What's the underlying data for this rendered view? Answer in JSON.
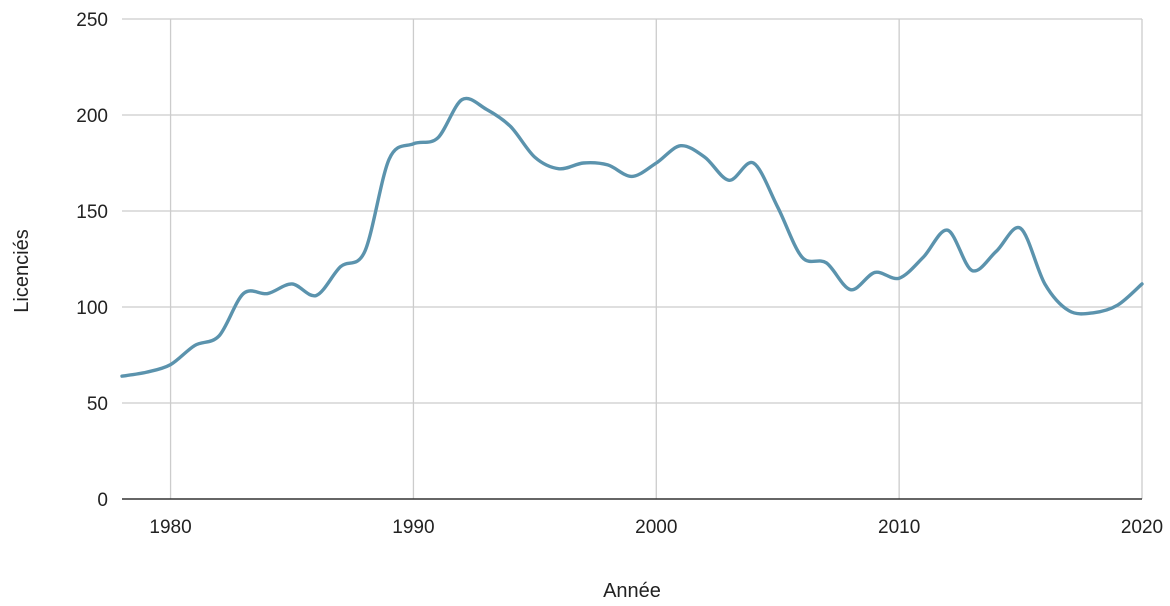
{
  "chart_data": {
    "type": "line",
    "title": "",
    "xlabel": "Année",
    "ylabel": "Licenciés",
    "xlim": [
      1978,
      2020
    ],
    "ylim": [
      0,
      250
    ],
    "x_ticks": [
      "1980",
      "1990",
      "2000",
      "2010",
      "2020"
    ],
    "y_ticks": [
      "0",
      "50",
      "100",
      "150",
      "200",
      "250"
    ],
    "grid": true,
    "legend": "none",
    "colors": {
      "line": "#5b93ad",
      "grid": "#cccccc",
      "axis": "#333333"
    },
    "series": [
      {
        "x": [
          1978,
          1979,
          1980,
          1981,
          1982,
          1983,
          1984,
          1985,
          1986,
          1987,
          1988,
          1989,
          1990,
          1991,
          1992,
          1993,
          1994,
          1995,
          1996,
          1997,
          1998,
          1999,
          2000,
          2001,
          2002,
          2003,
          2004,
          2005,
          2006,
          2007,
          2008,
          2009,
          2010,
          2011,
          2012,
          2013,
          2014,
          2015,
          2016,
          2017,
          2018,
          2019,
          2020
        ],
        "values": [
          64,
          66,
          70,
          80,
          85,
          107,
          107,
          112,
          106,
          121,
          129,
          177,
          185,
          188,
          208,
          203,
          194,
          178,
          172,
          175,
          174,
          168,
          175,
          184,
          178,
          166,
          175,
          152,
          126,
          123,
          109,
          118,
          115,
          126,
          140,
          119,
          129,
          141,
          112,
          98,
          97,
          101,
          112
        ]
      }
    ]
  }
}
